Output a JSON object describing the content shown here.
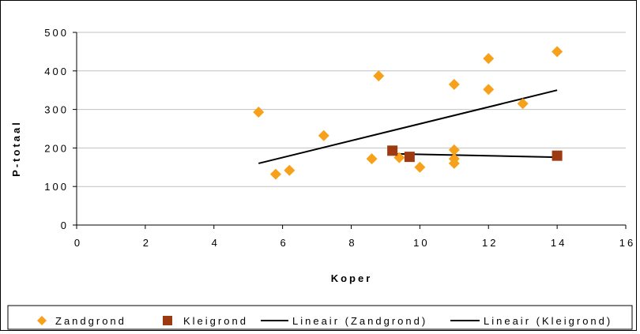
{
  "chart_data": {
    "type": "scatter",
    "title": "",
    "xlabel": "Koper",
    "ylabel": "P-totaal",
    "xlim": [
      0,
      16
    ],
    "ylim": [
      0,
      500
    ],
    "xticks": [
      0,
      2,
      4,
      6,
      8,
      10,
      12,
      14,
      16
    ],
    "yticks": [
      0,
      100,
      200,
      300,
      400,
      500
    ],
    "grid": "horizontal",
    "legend": "bottom",
    "series": [
      {
        "name": "Zandgrond",
        "marker": "diamond",
        "color": "#F7A11A",
        "points": [
          [
            5.3,
            293
          ],
          [
            5.8,
            132
          ],
          [
            6.2,
            142
          ],
          [
            7.2,
            232
          ],
          [
            8.6,
            172
          ],
          [
            8.8,
            387
          ],
          [
            9.4,
            175
          ],
          [
            10.0,
            150
          ],
          [
            11.0,
            365
          ],
          [
            11.0,
            195
          ],
          [
            11.0,
            172
          ],
          [
            11.0,
            160
          ],
          [
            12.0,
            432
          ],
          [
            12.0,
            352
          ],
          [
            13.0,
            315
          ],
          [
            14.0,
            450
          ]
        ]
      },
      {
        "name": "Kleigrond",
        "marker": "square",
        "color": "#9E3A12",
        "points": [
          [
            9.2,
            193
          ],
          [
            9.7,
            177
          ],
          [
            14.0,
            180
          ]
        ]
      },
      {
        "name": "Lineair (Zandgrond)",
        "type": "line",
        "color": "#000000",
        "points": [
          [
            5.3,
            160
          ],
          [
            14.0,
            350
          ]
        ]
      },
      {
        "name": "Lineair (Kleigrond)",
        "type": "line",
        "color": "#000000",
        "points": [
          [
            9.2,
            185
          ],
          [
            14.0,
            176
          ]
        ]
      }
    ]
  }
}
